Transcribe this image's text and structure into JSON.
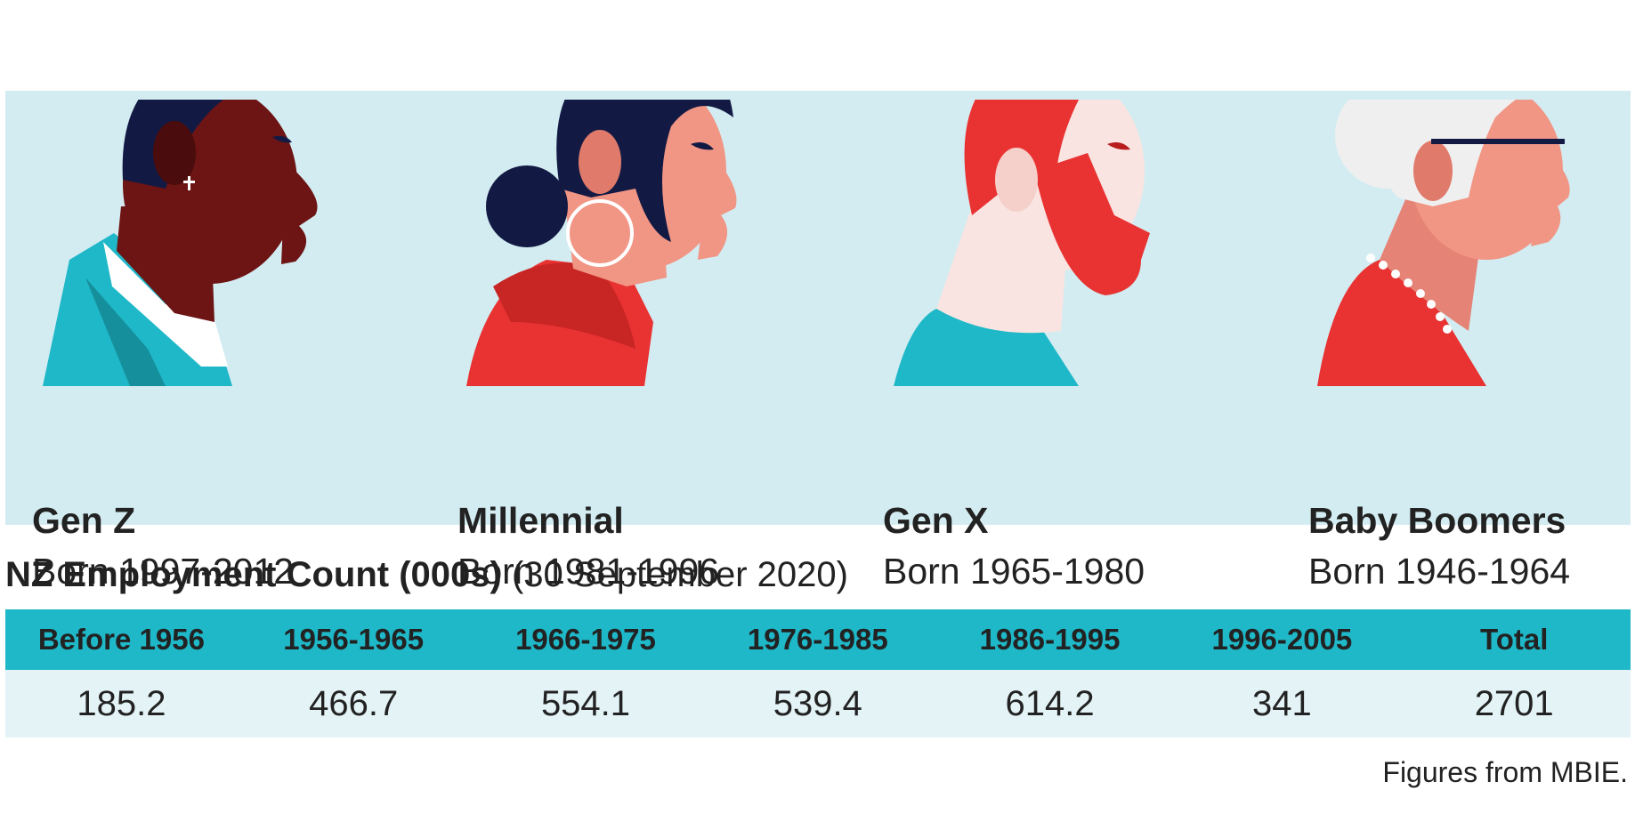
{
  "colors": {
    "panel": "#d3ecf1",
    "teal": "#1fb8c8",
    "red": "#e93232",
    "navy": "#121a44",
    "row": "#e4f3f6"
  },
  "generations": [
    {
      "name": "Gen Z",
      "born": "Born 1997-2012",
      "icon": "gen-z-profile-icon"
    },
    {
      "name": "Millennial",
      "born": "Born 1981-1996",
      "icon": "millennial-profile-icon"
    },
    {
      "name": "Gen X",
      "born": "Born 1965-1980",
      "icon": "gen-x-profile-icon"
    },
    {
      "name": "Baby Boomers",
      "born": "Born 1946-1964",
      "icon": "baby-boomer-profile-icon"
    }
  ],
  "table": {
    "title": "NZ Employment Count (000s)",
    "date": "(30 September 2020)",
    "headers": [
      "Before 1956",
      "1956-1965",
      "1966-1975",
      "1976-1985",
      "1986-1995",
      "1996-2005",
      "Total"
    ],
    "values": [
      "185.2",
      "466.7",
      "554.1",
      "539.4",
      "614.2",
      "341",
      "2701"
    ]
  },
  "source": "Figures from MBIE."
}
